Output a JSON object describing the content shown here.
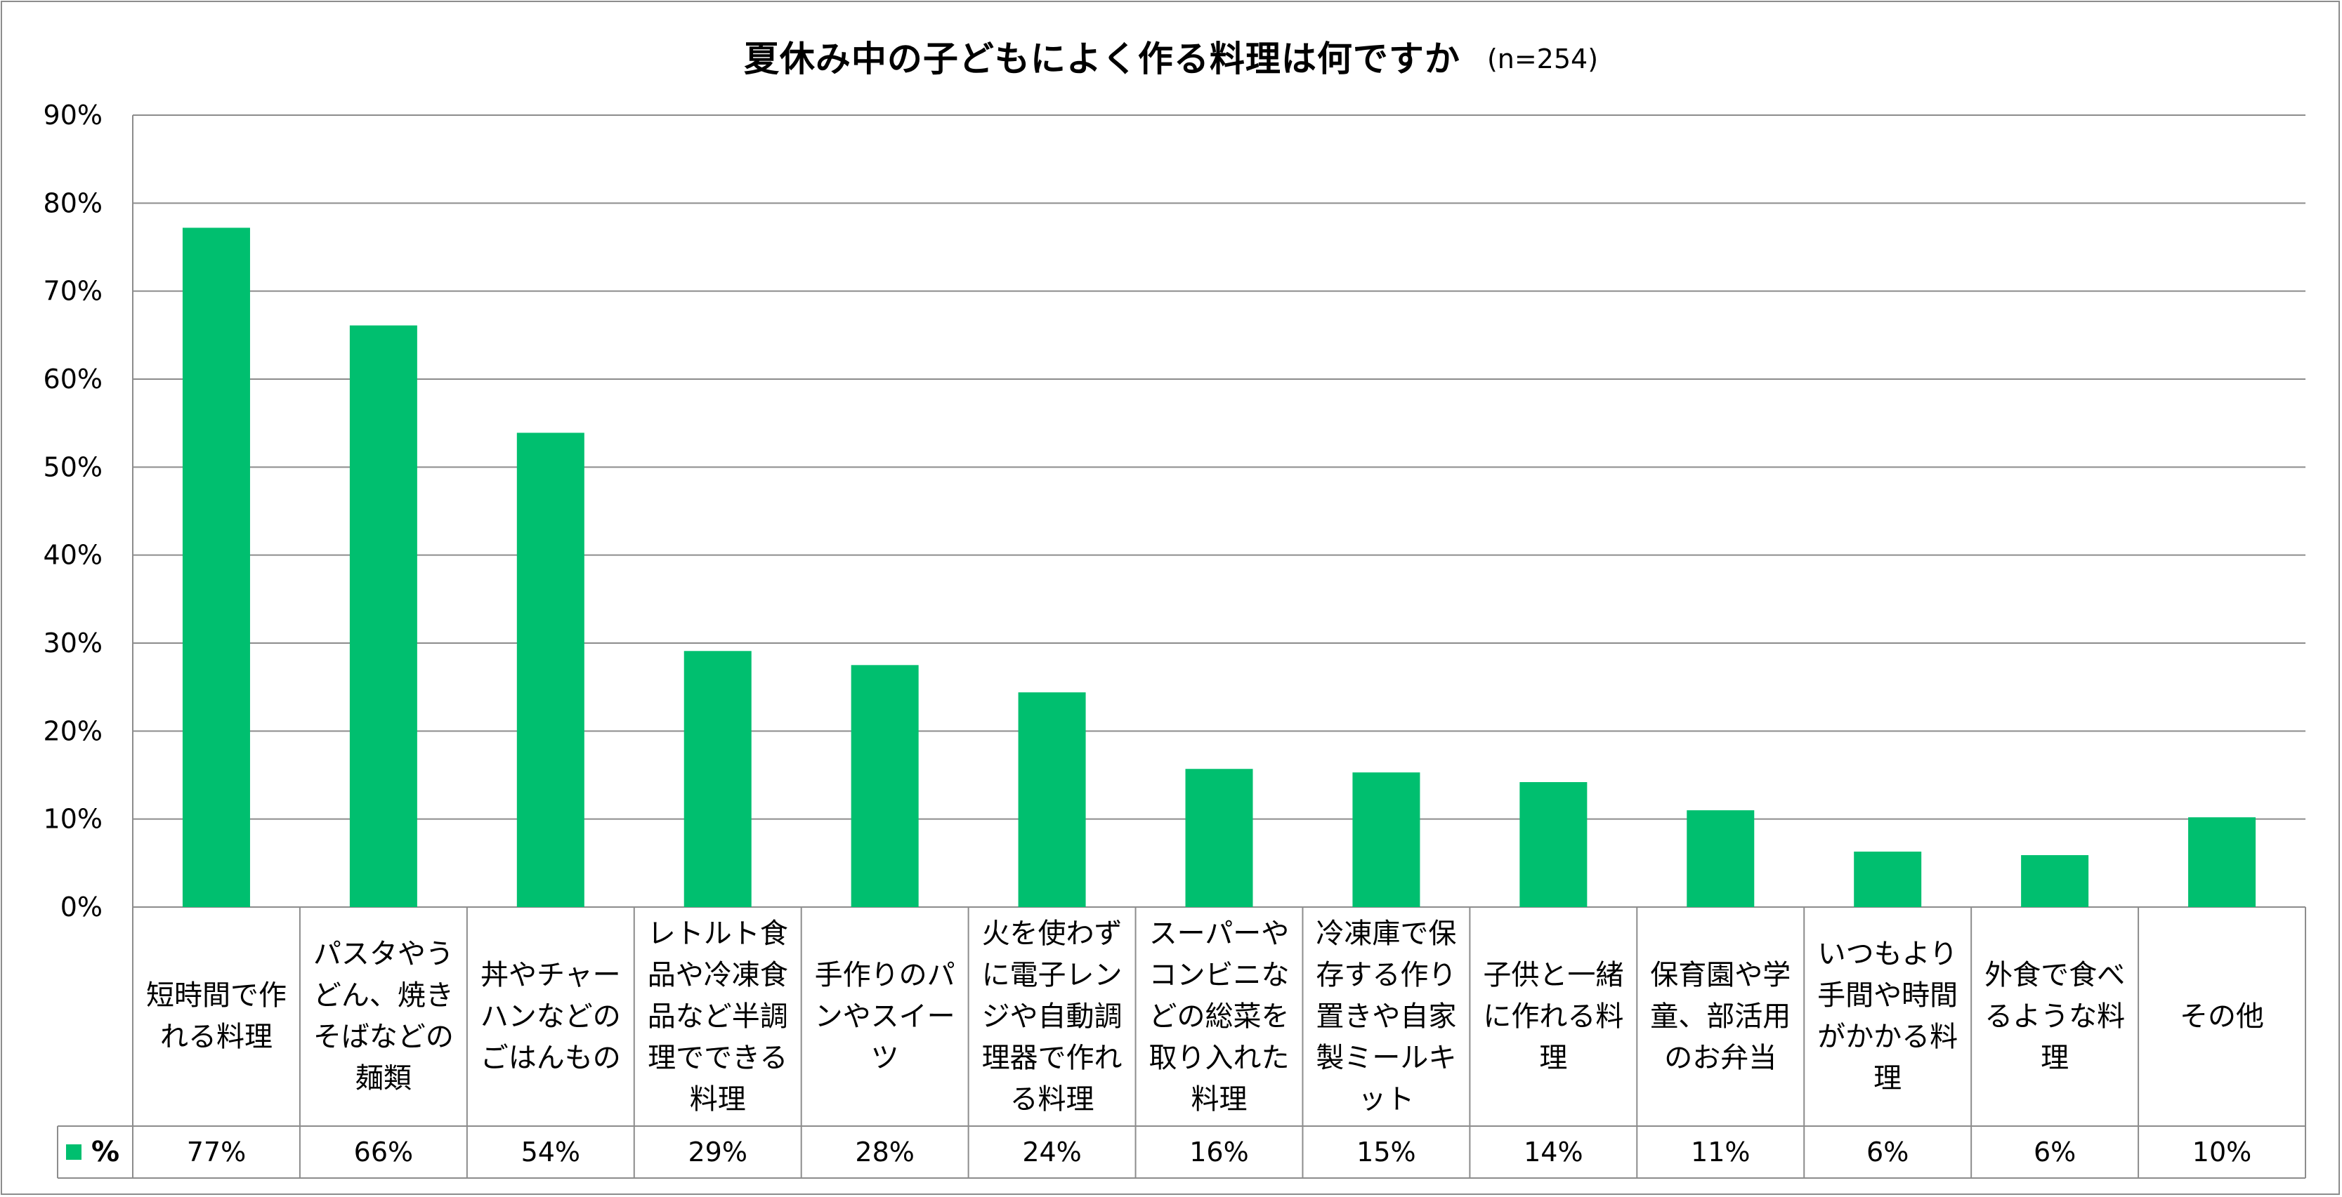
{
  "chart_data": {
    "type": "bar",
    "title": "夏休み中の子どもによく作る料理は何ですか",
    "subtitle": "(n=254)",
    "ylim": [
      0,
      90
    ],
    "ytick_step": 10,
    "yticks": [
      "0%",
      "10%",
      "20%",
      "30%",
      "40%",
      "50%",
      "60%",
      "70%",
      "80%",
      "90%"
    ],
    "categories": [
      "短時間で作れる料理",
      "パスタやうどん、焼きそばなどの麺類",
      "丼やチャーハンなどのごはんもの",
      "レトルト食品や冷凍食品など半調理でできる料理",
      "手作りのパンやスイーツ",
      "火を使わずに電子レンジや自動調理器で作れる料理",
      "スーパーやコンビニなどの総菜を取り入れた料理",
      "冷凍庫で保存する作り置きや自家製ミールキット",
      "子供と一緒に作れる料理",
      "保育園や学童、部活用のお弁当",
      "いつもより手間や時間がかかる料理",
      "外食で食べるような料理",
      "その他"
    ],
    "series": [
      {
        "name": "%",
        "color": "#00bf6f",
        "values": [
          77.2,
          66.1,
          53.9,
          29.1,
          27.5,
          24.4,
          15.7,
          15.3,
          14.2,
          11.0,
          6.3,
          5.9,
          10.2
        ],
        "labels": [
          "77%",
          "66%",
          "54%",
          "29%",
          "28%",
          "24%",
          "16%",
          "15%",
          "14%",
          "11%",
          "6%",
          "6%",
          "10%"
        ]
      }
    ],
    "legend": "bottom-table",
    "grid": true
  },
  "colors": {
    "bar": "#00bf6f",
    "grid": "#8c8c8c",
    "frame": "#8c8c8c"
  }
}
